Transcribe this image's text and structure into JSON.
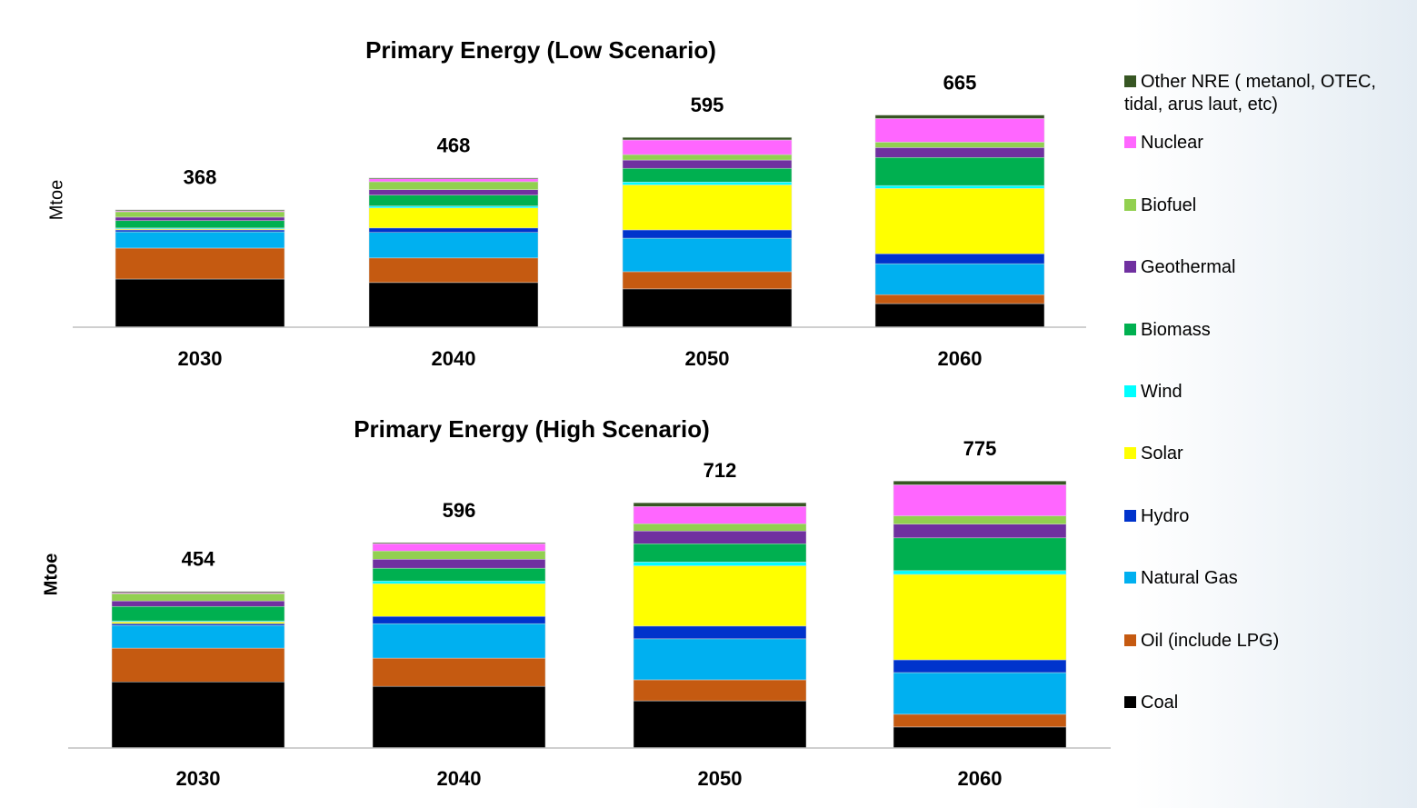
{
  "chart_data": [
    {
      "type": "stacked_bar",
      "title": "Primary Energy (Low Scenario)",
      "y_label": "Mtoe",
      "categories": [
        "2030",
        "2040",
        "2050",
        "2060"
      ],
      "totals": [
        368,
        468,
        595,
        665
      ],
      "series": [
        {
          "name": "Coal",
          "color": "#000000",
          "values": [
            151,
            140,
            120,
            74
          ]
        },
        {
          "name": "Oil (include LPG)",
          "color": "#c55a11",
          "values": [
            97,
            77,
            54,
            28
          ]
        },
        {
          "name": "Natural Gas",
          "color": "#00b0f0",
          "values": [
            51,
            80,
            105,
            97
          ]
        },
        {
          "name": "Hydro",
          "color": "#0033cc",
          "values": [
            6,
            14,
            26,
            31
          ]
        },
        {
          "name": "Solar",
          "color": "#ffff00",
          "values": [
            3,
            63,
            141,
            205
          ]
        },
        {
          "name": "Wind",
          "color": "#00ffff",
          "values": [
            3,
            6,
            9,
            9
          ]
        },
        {
          "name": "Biomass",
          "color": "#00b050",
          "values": [
            23,
            34,
            43,
            88
          ]
        },
        {
          "name": "Geothermal",
          "color": "#7030a0",
          "values": [
            11,
            17,
            26,
            31
          ]
        },
        {
          "name": "Biofuel",
          "color": "#92d050",
          "values": [
            17,
            25,
            17,
            17
          ]
        },
        {
          "name": "Nuclear",
          "color": "#ff66ff",
          "values": [
            3,
            9,
            46,
            74
          ]
        },
        {
          "name": "Other NRE ( metanol, OTEC, tidal, arus laut, etc)",
          "color": "#375623",
          "values": [
            3,
            3,
            8,
            11
          ]
        }
      ]
    },
    {
      "type": "stacked_bar",
      "title": "Primary Energy (High Scenario)",
      "y_label": "Mtoe",
      "categories": [
        "2030",
        "2040",
        "2050",
        "2060"
      ],
      "totals": [
        454,
        596,
        712,
        775
      ],
      "series": [
        {
          "values": [
            192,
            179,
            137,
            61
          ]
        },
        {
          "values": [
            98,
            82,
            61,
            37
          ]
        },
        {
          "values": [
            66,
            100,
            119,
            121
          ]
        },
        {
          "values": [
            5,
            21,
            37,
            37
          ]
        },
        {
          "values": [
            5,
            95,
            175,
            248
          ]
        },
        {
          "values": [
            3,
            8,
            11,
            11
          ]
        },
        {
          "values": [
            42,
            37,
            53,
            95
          ]
        },
        {
          "values": [
            16,
            26,
            37,
            40
          ]
        },
        {
          "values": [
            21,
            24,
            21,
            24
          ]
        },
        {
          "values": [
            3,
            21,
            50,
            90
          ]
        },
        {
          "values": [
            3,
            3,
            11,
            11
          ]
        }
      ]
    }
  ]
}
